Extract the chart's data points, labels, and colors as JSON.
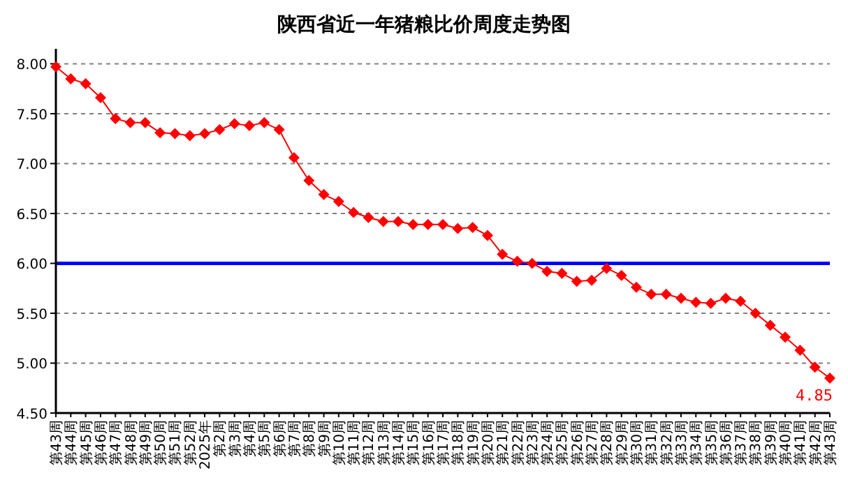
{
  "chart_data": {
    "type": "line",
    "title": "陕西省近一年猪粮比价周度走势图",
    "categories": [
      "第43周",
      "第44周",
      "第45周",
      "第46周",
      "第47周",
      "第48周",
      "第49周",
      "第50周",
      "第51周",
      "第52周",
      "2025年",
      "第2周",
      "第3周",
      "第4周",
      "第5周",
      "第6周",
      "第7周",
      "第8周",
      "第9周",
      "第10周",
      "第11周",
      "第12周",
      "第13周",
      "第14周",
      "第15周",
      "第16周",
      "第17周",
      "第18周",
      "第19周",
      "第20周",
      "第21周",
      "第22周",
      "第23周",
      "第24周",
      "第25周",
      "第26周",
      "第27周",
      "第28周",
      "第29周",
      "第30周",
      "第31周",
      "第32周",
      "第33周",
      "第34周",
      "第35周",
      "第36周",
      "第37周",
      "第38周",
      "第39周",
      "第40周",
      "第41周",
      "第42周",
      "第43周"
    ],
    "series": [
      {
        "color": "#ff0000",
        "values": [
          7.97,
          7.85,
          7.8,
          7.66,
          7.45,
          7.41,
          7.41,
          7.31,
          7.3,
          7.28,
          7.3,
          7.34,
          7.4,
          7.38,
          7.41,
          7.34,
          7.06,
          6.83,
          6.69,
          6.62,
          6.51,
          6.46,
          6.42,
          6.42,
          6.39,
          6.39,
          6.39,
          6.35,
          6.36,
          6.28,
          6.09,
          6.02,
          6.0,
          5.92,
          5.9,
          5.82,
          5.83,
          5.95,
          5.88,
          5.76,
          5.69,
          5.69,
          5.65,
          5.61,
          5.6,
          5.65,
          5.62,
          5.5,
          5.38,
          5.26,
          5.13,
          4.96,
          4.85
        ],
        "value_labels": [
          null,
          null,
          null,
          null,
          null,
          null,
          null,
          null,
          null,
          null,
          null,
          null,
          null,
          null,
          null,
          null,
          null,
          null,
          null,
          null,
          null,
          null,
          null,
          null,
          null,
          null,
          null,
          null,
          null,
          null,
          null,
          null,
          null,
          null,
          null,
          null,
          null,
          null,
          null,
          null,
          null,
          null,
          null,
          null,
          null,
          null,
          null,
          null,
          null,
          null,
          null,
          null,
          "4.85"
        ]
      }
    ],
    "ylim": [
      4.5,
      8.15
    ],
    "yticks": [
      {
        "value": 4.5,
        "label": "4.50"
      },
      {
        "value": 5,
        "label": "5.00"
      },
      {
        "value": 5.5,
        "label": "5.50"
      },
      {
        "value": 6,
        "label": "6.00"
      },
      {
        "value": 6.5,
        "label": "6.50"
      },
      {
        "value": 7,
        "label": "7.00"
      },
      {
        "value": 7.5,
        "label": "7.50"
      },
      {
        "value": 8,
        "label": "8.00"
      }
    ],
    "ref_lines": [
      {
        "axis": "y",
        "value": 6,
        "color": "#0000ff"
      }
    ],
    "grid": "y",
    "marker": "diamond"
  }
}
